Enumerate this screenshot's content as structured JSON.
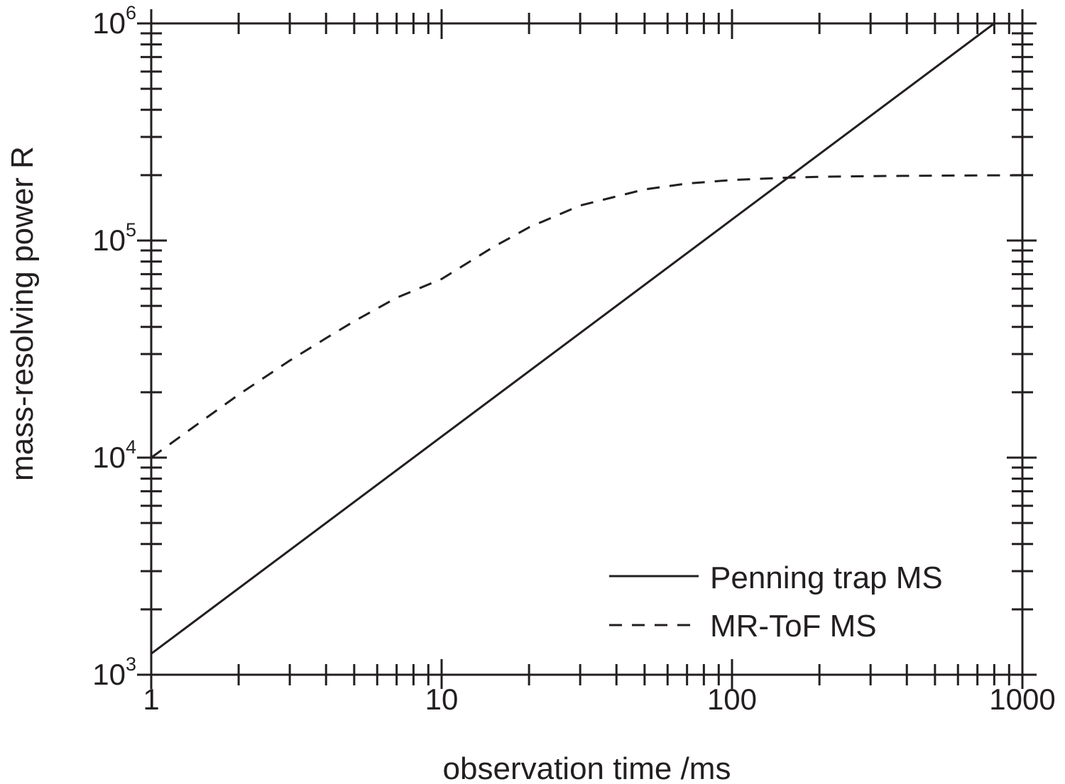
{
  "chart_data": {
    "type": "line",
    "xlabel": "observation time /ms",
    "ylabel": "mass-resolving power R",
    "x_scale": "log",
    "y_scale": "log",
    "xlim": [
      1,
      1000
    ],
    "ylim": [
      1000,
      1000000
    ],
    "grid": false,
    "legend_position": "bottom-right",
    "x_tick_labels": [
      {
        "value": 1,
        "label": "1"
      },
      {
        "value": 10,
        "label": "10"
      },
      {
        "value": 100,
        "label": "100"
      },
      {
        "value": 1000,
        "label": "1000"
      }
    ],
    "y_tick_labels": [
      {
        "value": 1000,
        "base": "10",
        "exp": "3"
      },
      {
        "value": 10000,
        "base": "10",
        "exp": "4"
      },
      {
        "value": 100000,
        "base": "10",
        "exp": "5"
      },
      {
        "value": 1000000,
        "base": "10",
        "exp": "6"
      }
    ],
    "series": [
      {
        "name": "Penning trap MS",
        "style": "solid",
        "color": "#231f20",
        "x": [
          1,
          10,
          100,
          800
        ],
        "y": [
          1250,
          12500,
          125000,
          1000000
        ]
      },
      {
        "name": "MR-ToF MS",
        "style": "dashed",
        "color": "#231f20",
        "x": [
          1,
          1.5,
          2,
          3,
          4,
          5,
          7,
          10,
          15,
          20,
          30,
          50,
          70,
          100,
          150,
          200,
          300,
          500,
          700,
          1000
        ],
        "y": [
          10000,
          14800,
          19500,
          28000,
          35500,
          42500,
          54500,
          66500,
          93000,
          115000,
          145000,
          172000,
          183000,
          190000,
          194500,
          196500,
          198000,
          199000,
          199500,
          199800
        ]
      }
    ]
  }
}
